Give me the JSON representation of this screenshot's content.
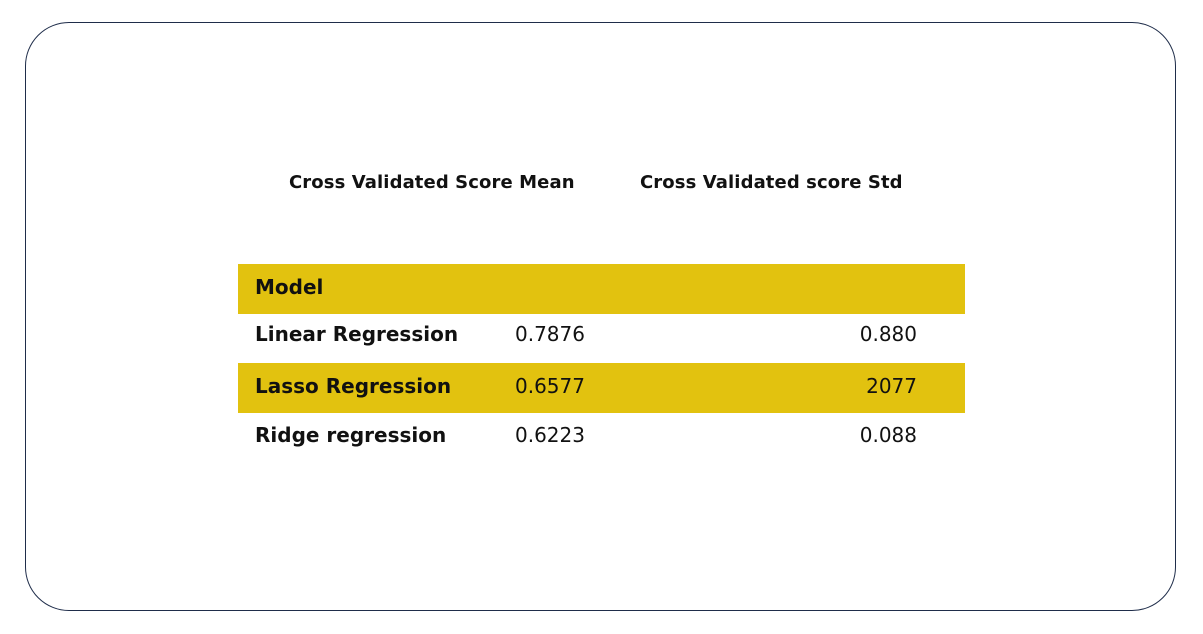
{
  "columns": {
    "mean": "Cross Validated Score Mean",
    "std": "Cross Validated score Std"
  },
  "table": {
    "header_label": "Model",
    "rows": [
      {
        "model": "Linear Regression",
        "mean": "0.7876",
        "std": "0.880"
      },
      {
        "model": "Lasso Regression",
        "mean": "0.6577",
        "std": "2077"
      },
      {
        "model": "Ridge regression",
        "mean": "0.6223",
        "std": "0.088"
      }
    ]
  },
  "colors": {
    "highlight": "#e2c20f",
    "border": "#1f2d4a",
    "text": "#111111"
  }
}
